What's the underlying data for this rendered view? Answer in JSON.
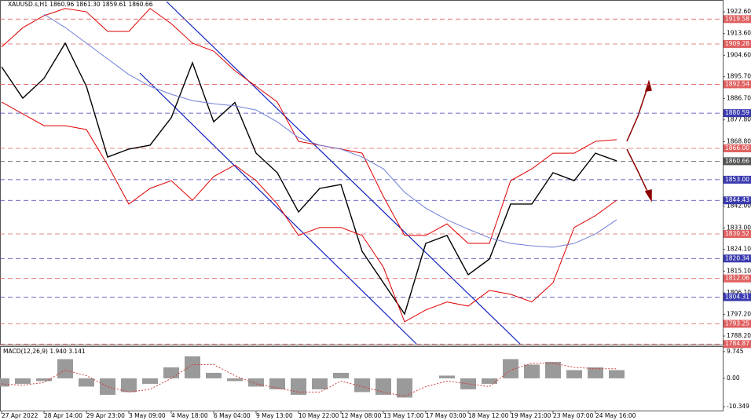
{
  "chart_data": [
    {
      "type": "line",
      "title": "XAUUSD.s,H1  1860.96 1861.30 1859.61 1860.66",
      "categories": [
        "27 Apr 2022",
        null,
        "28 Apr 14:00",
        null,
        "29 Apr 23:00",
        null,
        "3 May 09:00",
        null,
        "4 May 18:00",
        null,
        "6 May 04:00",
        null,
        "9 May 13:00",
        null,
        "10 May 22:00",
        null,
        "12 May 08:00",
        null,
        "13 May 17:00",
        null,
        "17 May 03:00",
        null,
        "18 May 12:00",
        null,
        "19 May 21:00",
        null,
        "23 May 07:00",
        null,
        "24 May 16:00",
        null
      ],
      "series": [
        {
          "color": "#000000",
          "values": [
            1899.8,
            1886.8,
            1895,
            1909.6,
            1891.7,
            1862.4,
            1865.7,
            1867.3,
            1878.7,
            1901.5,
            1877,
            1885,
            1864,
            1855.9,
            1839.6,
            1849.4,
            1851,
            1823.3,
            1810.3,
            1797.3,
            1826.6,
            1829.9,
            1813.6,
            1820.1,
            1842.9,
            1842.9,
            1855.9,
            1852.6,
            1864,
            1860.8
          ]
        },
        {
          "color": "#e00000",
          "values": [
            1908,
            1916,
            1921,
            1924,
            1922.6,
            1914.5,
            1914.5,
            1924,
            1917.7,
            1909.6,
            1906.3,
            1898.2,
            1891.7,
            1885.2,
            1868.9,
            1867.3,
            1865.7,
            1864,
            1846.1,
            1829.9,
            1829.9,
            1834.7,
            1826.6,
            1826.6,
            1852.6,
            1857.5,
            1864,
            1864,
            1868.9,
            1869.6
          ]
        },
        {
          "color": "#e00000",
          "values": [
            1885.2,
            1880.3,
            1875.4,
            1875.4,
            1873.8,
            1859.1,
            1842.9,
            1849.4,
            1852.6,
            1844.5,
            1854.3,
            1859.1,
            1852.6,
            1842.9,
            1829.9,
            1833.2,
            1833.2,
            1829.9,
            1816.8,
            1794.1,
            1799,
            1802.3,
            1800.6,
            1807.1,
            1805.5,
            1802.3,
            1810.3,
            1833.2,
            1838.1,
            1844.5
          ]
        },
        {
          "color": "#6f7fd8",
          "values": [
            null,
            null,
            1921.6,
            1916.1,
            1909.6,
            1903.1,
            1896.6,
            1891.7,
            1888.4,
            1885.8,
            1884.5,
            1883.6,
            1881.9,
            1877,
            1870.5,
            1867.3,
            1865.7,
            1862.4,
            1857.5,
            1847.8,
            1841.2,
            1836.4,
            1832.5,
            1828.9,
            1826.6,
            1825.6,
            1825,
            1826.6,
            1830.5,
            1836.4
          ]
        }
      ],
      "ylim": [
        1784.3,
        1927.5
      ],
      "yticks": [
        {
          "value": 1922.6,
          "label": "1922.60"
        },
        {
          "value": 1913.6,
          "label": "1913.60"
        },
        {
          "value": 1904.6,
          "label": "1904.60"
        },
        {
          "value": 1895.7,
          "label": "1895.70"
        },
        {
          "value": 1886.7,
          "label": "1886.70"
        },
        {
          "value": 1877.8,
          "label": "1877.80"
        },
        {
          "value": 1868.8,
          "label": "1868.80"
        },
        {
          "value": 1842,
          "label": "1842.00"
        },
        {
          "value": 1833,
          "label": "1833.00"
        },
        {
          "value": 1824.1,
          "label": "1824.10"
        },
        {
          "value": 1815.1,
          "label": "1815.10"
        },
        {
          "value": 1806.1,
          "label": "1806.10"
        },
        {
          "value": 1797.2,
          "label": "1797.20"
        },
        {
          "value": 1788.2,
          "label": "1788.20"
        }
      ],
      "levels": [
        {
          "value": 1919.58,
          "color": "#e06060"
        },
        {
          "value": 1909.28,
          "color": "#e06060"
        },
        {
          "value": 1892.54,
          "color": "#e06060"
        },
        {
          "value": 1880.59,
          "color": "#3a3ab0"
        },
        {
          "value": 1866,
          "label": "1866.00",
          "color": "#e06060"
        },
        {
          "value": 1860.66,
          "color": "#555555"
        },
        {
          "value": 1853,
          "label": "1853.00",
          "color": "#3a3ab0"
        },
        {
          "value": 1844.43,
          "color": "#3a3ab0"
        },
        {
          "value": 1830.52,
          "color": "#e06060"
        },
        {
          "value": 1820.34,
          "color": "#3a3ab0"
        },
        {
          "value": 1812.06,
          "color": "#e06060"
        },
        {
          "value": 1804.31,
          "color": "#3a3ab0"
        },
        {
          "value": 1793.25,
          "color": "#e06060"
        },
        {
          "value": 1784.87,
          "color": "#e06060"
        }
      ]
    },
    {
      "type": "bar",
      "title": "MACD(12,26,9) 1.940 3.141",
      "series": [
        {
          "color": "#9a9a9a",
          "values": [
            -3,
            -2,
            -1,
            7,
            -3,
            -6,
            -5,
            -2,
            4,
            8,
            2,
            -1,
            -3,
            -4,
            -6,
            -4,
            2,
            -5,
            -6,
            -7,
            0,
            1,
            -4,
            -2,
            7,
            5,
            6,
            3,
            4,
            3
          ]
        },
        {
          "color": "#d04040",
          "values": [
            -2,
            -2.5,
            -1.5,
            3,
            1,
            -3,
            -5,
            -4,
            0,
            5,
            5,
            1,
            -2,
            -3.5,
            -5,
            -5,
            -1,
            -3,
            -5,
            -6.5,
            -3,
            -1,
            -2,
            -3,
            3,
            5.5,
            5.5,
            4,
            3.5,
            3.5
          ]
        }
      ],
      "ylim": [
        -12.02,
        11.7
      ],
      "yticks": [
        9.745,
        {
          "value": 0,
          "label": "0.00"
        },
        -10.349
      ]
    }
  ]
}
